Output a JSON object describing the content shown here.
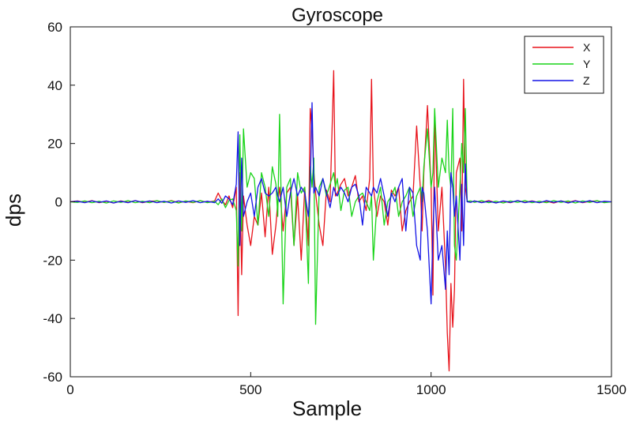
{
  "chart_data": {
    "type": "line",
    "title": "Gyroscope",
    "xlabel": "Sample",
    "ylabel": "dps",
    "xlim": [
      0,
      1500
    ],
    "ylim": [
      -60,
      60
    ],
    "xticks": [
      0,
      500,
      1000,
      1500
    ],
    "yticks": [
      -60,
      -40,
      -20,
      0,
      20,
      40,
      60
    ],
    "grid": false,
    "legend": "top-right",
    "x": [
      0,
      20,
      40,
      60,
      80,
      100,
      120,
      140,
      160,
      180,
      200,
      220,
      240,
      260,
      280,
      300,
      320,
      340,
      360,
      380,
      400,
      410,
      420,
      430,
      440,
      450,
      460,
      465,
      470,
      475,
      480,
      490,
      500,
      510,
      520,
      530,
      540,
      550,
      560,
      570,
      575,
      580,
      590,
      600,
      610,
      620,
      630,
      640,
      650,
      660,
      665,
      670,
      675,
      680,
      690,
      700,
      710,
      720,
      730,
      735,
      740,
      750,
      760,
      770,
      780,
      790,
      800,
      810,
      820,
      830,
      835,
      840,
      850,
      860,
      870,
      880,
      890,
      900,
      910,
      920,
      930,
      940,
      950,
      960,
      970,
      975,
      980,
      990,
      1000,
      1005,
      1010,
      1020,
      1030,
      1040,
      1045,
      1050,
      1055,
      1060,
      1065,
      1070,
      1080,
      1085,
      1090,
      1095,
      1100,
      1110,
      1120,
      1140,
      1160,
      1180,
      1200,
      1220,
      1240,
      1260,
      1280,
      1300,
      1320,
      1340,
      1360,
      1380,
      1400,
      1420,
      1440,
      1460,
      1480,
      1500
    ],
    "series": [
      {
        "name": "X",
        "color": "#e8141c",
        "values": [
          0,
          0.3,
          -0.2,
          0.4,
          -0.3,
          0.2,
          -0.4,
          0.3,
          -0.2,
          0.4,
          -0.3,
          0.2,
          0.3,
          -0.2,
          0.4,
          -0.3,
          0.2,
          -0.3,
          0.4,
          -0.2,
          0.3,
          3,
          0.5,
          -1,
          2,
          -2,
          5,
          -39,
          10,
          -25,
          2,
          -8,
          -15,
          -5,
          -8,
          3,
          -12,
          5,
          -18,
          -8,
          0,
          5,
          -10,
          3,
          5,
          -15,
          2,
          -20,
          5,
          -15,
          32,
          25,
          10,
          3,
          -8,
          -15,
          4,
          0,
          45,
          2,
          3,
          6,
          8,
          2,
          5,
          9,
          0,
          2,
          -3,
          8,
          42,
          5,
          -5,
          2,
          0,
          -8,
          4,
          2,
          5,
          -10,
          -3,
          0,
          2,
          26,
          5,
          -10,
          10,
          33,
          5,
          -32,
          31,
          -10,
          5,
          -22,
          -45,
          -58,
          -28,
          -43,
          -30,
          10,
          15,
          -10,
          42,
          5,
          0.3,
          -0.2,
          0.3,
          -0.2,
          0.4,
          -0.3,
          0.2,
          -0.3,
          0.4,
          -0.2,
          0.3,
          -0.3,
          0.2,
          -0.4,
          0.3,
          -0.2,
          0.4,
          -0.3,
          0.2,
          0.3,
          -0.2,
          0
        ]
      },
      {
        "name": "Y",
        "color": "#19d419",
        "values": [
          0,
          -0.2,
          0.3,
          -0.3,
          0.2,
          -0.4,
          0.3,
          -0.2,
          0.4,
          -0.3,
          0.2,
          -0.3,
          0.4,
          -0.2,
          0.3,
          -0.4,
          0.3,
          -0.2,
          0.4,
          -0.3,
          0.2,
          -1,
          1,
          -2,
          0.5,
          1,
          -3,
          -22,
          23,
          -10,
          25,
          5,
          10,
          8,
          -8,
          10,
          5,
          -5,
          12,
          6,
          -5,
          30,
          -35,
          5,
          8,
          -15,
          10,
          3,
          5,
          -28,
          12,
          5,
          15,
          -42,
          5,
          8,
          2,
          6,
          10,
          5,
          8,
          -3,
          4,
          5,
          -5,
          0,
          2,
          3,
          0,
          -3,
          2,
          -20,
          0,
          5,
          -8,
          0,
          2,
          5,
          -5,
          0,
          2,
          5,
          -5,
          2,
          5,
          0,
          12,
          25,
          5,
          10,
          32,
          5,
          15,
          10,
          28,
          10,
          5,
          32,
          -15,
          -20,
          5,
          20,
          10,
          32,
          0.2,
          0.3,
          -0.2,
          0.4,
          -0.3,
          0.2,
          -0.4,
          0.3,
          -0.2,
          0.4,
          -0.3,
          0.2,
          -0.3,
          0.4,
          -0.2,
          0.3,
          -0.4,
          0.3,
          -0.2,
          0.4,
          -0.3,
          0
        ]
      },
      {
        "name": "Z",
        "color": "#1414e6",
        "values": [
          0,
          0.2,
          -0.3,
          0.3,
          -0.2,
          0.3,
          -0.4,
          0.2,
          -0.3,
          0.4,
          -0.2,
          0.3,
          -0.3,
          0.2,
          -0.4,
          0.3,
          -0.2,
          0.4,
          -0.3,
          0.2,
          -0.3,
          1,
          -0.5,
          2,
          1,
          -1,
          6,
          24,
          -15,
          15,
          -5,
          0,
          3,
          -5,
          5,
          8,
          3,
          2,
          3,
          5,
          2,
          0,
          5,
          -5,
          3,
          8,
          2,
          5,
          3,
          -5,
          5,
          34,
          3,
          5,
          2,
          8,
          3,
          -2,
          5,
          3,
          2,
          5,
          3,
          0,
          5,
          6,
          2,
          -8,
          5,
          3,
          2,
          5,
          3,
          8,
          2,
          -5,
          3,
          0,
          5,
          8,
          -10,
          5,
          3,
          -15,
          -20,
          5,
          3,
          -10,
          -35,
          -10,
          5,
          -20,
          -15,
          -30,
          -10,
          -25,
          10,
          5,
          -5,
          2,
          -20,
          6,
          -15,
          13,
          0,
          -0.2,
          0.3,
          -0.3,
          0.2,
          -0.4,
          0.3,
          -0.2,
          0.4,
          -0.3,
          0.2,
          -0.3,
          0.4,
          -0.2,
          0.3,
          -0.4,
          0.3,
          -0.2,
          0.4,
          -0.3,
          0.2,
          0
        ]
      }
    ]
  }
}
